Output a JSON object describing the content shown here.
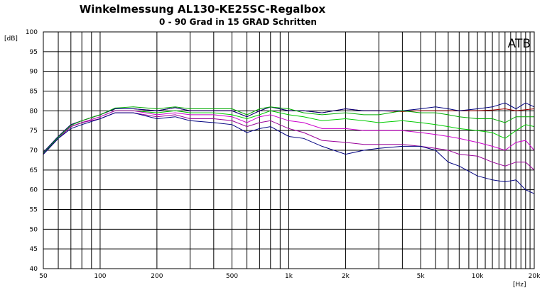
{
  "chart_data": {
    "type": "line",
    "title": "Winkelmessung AL130-KE25SC-Regalbox",
    "subtitle": "0 - 90 Grad in 15 GRAD Schritten",
    "watermark": "ATB",
    "ylabel": "[dB]",
    "xlabel": "[Hz]",
    "xscale": "log",
    "xlim": [
      50,
      20000
    ],
    "ylim": [
      40,
      100
    ],
    "grid": true,
    "y_ticks": [
      100,
      95,
      90,
      85,
      80,
      75,
      70,
      65,
      60,
      55,
      50,
      45,
      40
    ],
    "x_ticks": [
      {
        "value": 50,
        "label": "50"
      },
      {
        "value": 100,
        "label": "100"
      },
      {
        "value": 200,
        "label": "200"
      },
      {
        "value": 500,
        "label": "500"
      },
      {
        "value": 1000,
        "label": "1k"
      },
      {
        "value": 2000,
        "label": "2k"
      },
      {
        "value": 5000,
        "label": "5k"
      },
      {
        "value": 10000,
        "label": "10k"
      },
      {
        "value": 20000,
        "label": "20k"
      }
    ],
    "x": [
      50,
      60,
      70,
      80,
      100,
      120,
      150,
      200,
      250,
      300,
      400,
      500,
      600,
      700,
      800,
      1000,
      1200,
      1500,
      2000,
      2500,
      3000,
      4000,
      5000,
      6000,
      7000,
      8000,
      10000,
      12000,
      14000,
      16000,
      18000,
      20000
    ],
    "series": [
      {
        "color": "#a00000",
        "values": [
          69.5,
          73.5,
          76.5,
          77.5,
          79.0,
          80.5,
          80.5,
          80.0,
          80.8,
          80.0,
          80.0,
          80.0,
          78.5,
          80.0,
          81.0,
          80.0,
          80.0,
          79.5,
          80.5,
          80.0,
          80.0,
          79.8,
          80.0,
          80.0,
          80.0,
          80.0,
          80.0,
          80.2,
          80.5,
          80.0,
          80.3,
          80.5
        ]
      },
      {
        "color": "#000080",
        "values": [
          69.5,
          73.5,
          76.5,
          77.5,
          79.0,
          80.5,
          80.5,
          80.0,
          80.8,
          80.0,
          80.0,
          80.0,
          78.5,
          80.0,
          81.0,
          80.0,
          80.0,
          79.5,
          80.5,
          80.0,
          80.0,
          80.0,
          80.5,
          81.0,
          80.5,
          80.0,
          80.5,
          81.0,
          82.0,
          80.5,
          82.0,
          81.0
        ]
      },
      {
        "color": "#00aa00",
        "values": [
          69.2,
          73.3,
          76.3,
          77.5,
          79.0,
          80.7,
          81.0,
          80.5,
          81.0,
          80.5,
          80.5,
          80.5,
          79.0,
          80.5,
          81.0,
          80.5,
          79.5,
          79.0,
          79.5,
          79.0,
          79.0,
          80.0,
          79.5,
          79.5,
          79.0,
          78.5,
          78.0,
          78.0,
          77.0,
          78.5,
          78.5,
          78.5
        ]
      },
      {
        "color": "#00cc00",
        "values": [
          69.0,
          73.0,
          76.0,
          77.0,
          78.5,
          80.0,
          80.0,
          79.5,
          80.0,
          79.5,
          79.5,
          79.0,
          78.0,
          79.0,
          80.0,
          79.0,
          78.5,
          77.5,
          78.0,
          77.5,
          77.0,
          77.5,
          77.0,
          76.5,
          76.0,
          75.5,
          75.0,
          74.5,
          73.0,
          75.0,
          76.5,
          76.0
        ]
      },
      {
        "color": "#cc00cc",
        "values": [
          69.0,
          73.0,
          76.0,
          77.0,
          78.5,
          80.0,
          80.0,
          79.0,
          79.5,
          79.0,
          79.0,
          78.5,
          77.0,
          78.5,
          79.0,
          77.5,
          77.0,
          75.5,
          75.5,
          75.0,
          75.0,
          75.0,
          74.5,
          74.0,
          73.5,
          73.0,
          72.0,
          71.0,
          70.0,
          72.0,
          72.5,
          70.0
        ]
      },
      {
        "color": "#990099",
        "values": [
          69.0,
          73.0,
          76.0,
          77.0,
          78.0,
          79.5,
          79.5,
          78.5,
          79.0,
          78.0,
          78.0,
          77.5,
          76.0,
          77.0,
          77.5,
          75.5,
          74.5,
          72.5,
          72.0,
          71.5,
          71.5,
          71.5,
          71.0,
          70.5,
          70.0,
          69.0,
          68.5,
          67.0,
          66.0,
          67.0,
          67.0,
          65.0
        ]
      },
      {
        "color": "#000080",
        "values": [
          69.0,
          73.0,
          75.5,
          76.5,
          78.0,
          79.5,
          79.5,
          78.0,
          78.5,
          77.5,
          77.0,
          76.5,
          74.5,
          75.5,
          76.0,
          73.5,
          73.0,
          71.0,
          69.0,
          70.0,
          70.5,
          71.0,
          71.0,
          70.0,
          67.0,
          66.0,
          63.5,
          62.5,
          62.0,
          62.5,
          60.0,
          59.0
        ]
      }
    ]
  }
}
